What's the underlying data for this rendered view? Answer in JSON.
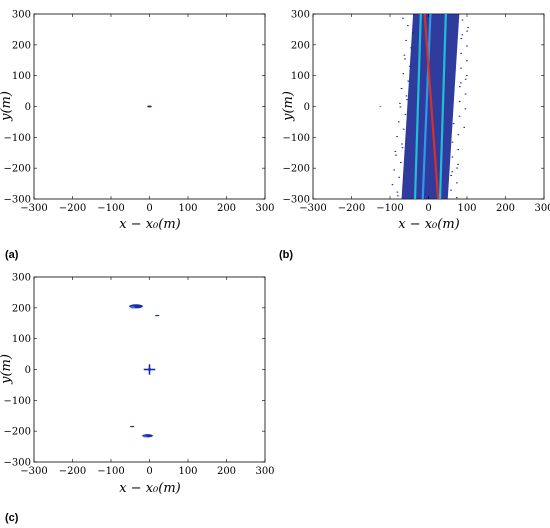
{
  "chart_data": [
    {
      "type": "heatmap",
      "panel_label": "(a)",
      "xlabel": "x − x₀(m)",
      "ylabel": "y(m)",
      "xlim": [
        -300,
        300
      ],
      "ylim": [
        -300,
        300
      ],
      "xticks": [
        "−300",
        "−200",
        "−100",
        "0",
        "100",
        "200",
        "300"
      ],
      "yticks": [
        "300",
        "200",
        "100",
        "0",
        "−100",
        "−200",
        "−300"
      ],
      "grid": false,
      "features": [
        {
          "kind": "point",
          "x": 0,
          "y": 0,
          "extent": 10,
          "color": "#1a2aa8"
        }
      ]
    },
    {
      "type": "heatmap",
      "panel_label": "(b)",
      "xlabel": "x − x₀(m)",
      "ylabel": "y(m)",
      "xlim": [
        -300,
        300
      ],
      "ylim": [
        -300,
        300
      ],
      "xticks": [
        "−300",
        "−200",
        "−100",
        "0",
        "100",
        "200",
        "300"
      ],
      "yticks": [
        "300",
        "200",
        "100",
        "0",
        "−100",
        "−200",
        "−300"
      ],
      "grid": false,
      "features": [
        {
          "kind": "band",
          "x_top": 20,
          "x_bottom": -10,
          "width": 120,
          "color": "#0a1a8c"
        },
        {
          "kind": "streak",
          "x_top": -20,
          "x_bottom": -35,
          "color": "#1ec8d8"
        },
        {
          "kind": "streak",
          "x_top": 45,
          "x_bottom": 30,
          "color": "#1ec8d8"
        },
        {
          "kind": "streak",
          "x_top": 5,
          "x_bottom": -15,
          "color": "#2aa0f0"
        },
        {
          "kind": "streak",
          "x_top": -10,
          "x_bottom": 25,
          "color": "#e03020"
        },
        {
          "kind": "point",
          "x": -125,
          "y": 0,
          "extent": 4,
          "color": "#1a2aa8"
        }
      ]
    },
    {
      "type": "heatmap",
      "panel_label": "(c)",
      "xlabel": "x − x₀(m)",
      "ylabel": "y(m)",
      "xlim": [
        -300,
        300
      ],
      "ylim": [
        -300,
        300
      ],
      "xticks": [
        "−300",
        "−200",
        "−100",
        "0",
        "100",
        "200",
        "300"
      ],
      "yticks": [
        "300",
        "200",
        "100",
        "0",
        "−100",
        "−200",
        "−300"
      ],
      "grid": false,
      "features": [
        {
          "kind": "cross",
          "x": 0,
          "y": 0,
          "extent": 15,
          "color": "#1a2aa8"
        },
        {
          "kind": "blob",
          "x": -35,
          "y": 205,
          "extent": 18,
          "color": "#1a2aa8"
        },
        {
          "kind": "blob",
          "x": 20,
          "y": 175,
          "extent": 6,
          "color": "#1a2aa8"
        },
        {
          "kind": "blob",
          "x": -45,
          "y": -185,
          "extent": 6,
          "color": "#1a2aa8"
        },
        {
          "kind": "blob",
          "x": -5,
          "y": -215,
          "extent": 14,
          "color": "#1a2aa8"
        }
      ]
    }
  ]
}
